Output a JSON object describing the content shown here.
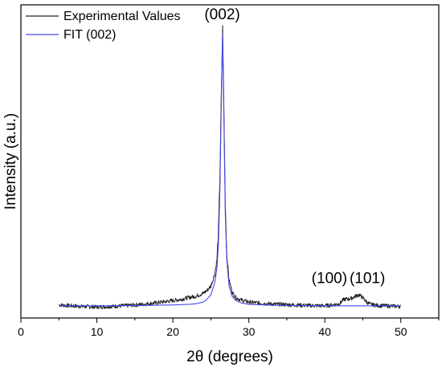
{
  "chart_data": {
    "type": "line",
    "xlabel": "2θ (degrees)",
    "ylabel": "Intensity (a.u.)",
    "xlim": [
      0,
      55
    ],
    "ylim": [
      0,
      1.08
    ],
    "xticks": [
      0,
      10,
      20,
      30,
      40,
      50
    ],
    "grid": false,
    "legend_position": "top-left",
    "series": [
      {
        "name": "Experimental Values",
        "color": "#222222",
        "x": [
          5,
          8,
          10,
          12,
          14,
          16,
          18,
          20,
          21,
          22,
          23,
          24,
          24.5,
          25,
          25.5,
          25.8,
          26,
          26.2,
          26.4,
          26.55,
          26.7,
          26.9,
          27.1,
          27.4,
          27.8,
          28.3,
          29,
          30,
          32,
          34,
          36,
          38,
          40,
          41,
          42,
          42.3,
          42.6,
          43,
          43.5,
          44,
          44.5,
          45,
          45.5,
          46,
          47,
          48,
          50
        ],
        "y": [
          0.045,
          0.04,
          0.038,
          0.04,
          0.043,
          0.047,
          0.053,
          0.06,
          0.064,
          0.07,
          0.075,
          0.085,
          0.095,
          0.11,
          0.15,
          0.2,
          0.3,
          0.5,
          0.8,
          1.0,
          0.75,
          0.4,
          0.22,
          0.13,
          0.09,
          0.07,
          0.062,
          0.055,
          0.05,
          0.047,
          0.045,
          0.043,
          0.042,
          0.045,
          0.05,
          0.06,
          0.065,
          0.065,
          0.068,
          0.075,
          0.08,
          0.07,
          0.055,
          0.047,
          0.043,
          0.042,
          0.04
        ]
      },
      {
        "name": "FIT (002)",
        "color": "#4848e8",
        "x": [
          5,
          10,
          15,
          20,
          22,
          23,
          24,
          24.5,
          25,
          25.5,
          25.8,
          26,
          26.2,
          26.4,
          26.55,
          26.7,
          26.9,
          27.1,
          27.4,
          27.8,
          28.3,
          29,
          30,
          33,
          36,
          40,
          45,
          50
        ],
        "y": [
          0.042,
          0.042,
          0.043,
          0.045,
          0.047,
          0.049,
          0.055,
          0.065,
          0.08,
          0.12,
          0.17,
          0.26,
          0.45,
          0.78,
          0.98,
          0.72,
          0.36,
          0.2,
          0.11,
          0.075,
          0.06,
          0.052,
          0.047,
          0.044,
          0.043,
          0.042,
          0.042,
          0.042
        ]
      }
    ],
    "annotations": [
      {
        "text": "(002)",
        "x": 26.5,
        "y": 1.03
      },
      {
        "text": "(100)",
        "x": 40.6,
        "y": 0.12
      },
      {
        "text": "(101)",
        "x": 45.6,
        "y": 0.12
      }
    ]
  }
}
